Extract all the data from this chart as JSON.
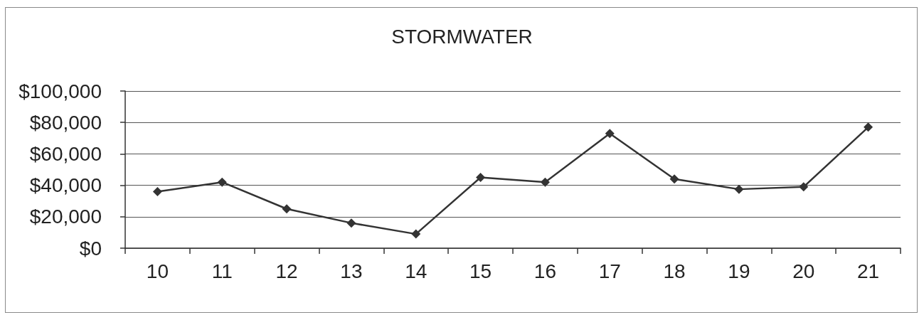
{
  "chart_data": {
    "type": "line",
    "title": "STORMWATER",
    "categories": [
      "10",
      "11",
      "12",
      "13",
      "14",
      "15",
      "16",
      "17",
      "18",
      "19",
      "20",
      "21"
    ],
    "series": [
      {
        "color": "#333333",
        "values": [
          36000,
          42000,
          25000,
          16000,
          9000,
          45000,
          42000,
          73000,
          44000,
          37500,
          39000,
          77000
        ]
      }
    ],
    "ylim": [
      0,
      100000
    ],
    "yticks": [
      {
        "value": 0,
        "label": "$0"
      },
      {
        "value": 20000,
        "label": "$20,000"
      },
      {
        "value": 40000,
        "label": "$40,000"
      },
      {
        "value": 60000,
        "label": "$60,000"
      },
      {
        "value": 80000,
        "label": "$80,000"
      },
      {
        "value": 100000,
        "label": "$100,000"
      }
    ],
    "grid": "y",
    "marker": "diamond",
    "line_style": "solid"
  }
}
